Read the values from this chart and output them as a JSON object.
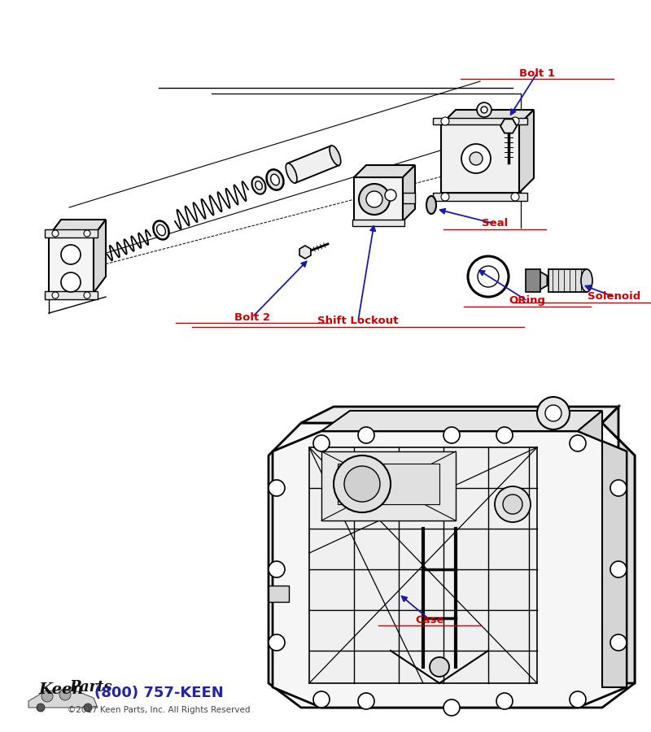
{
  "bg_color": "#ffffff",
  "label_color": "#cc0000",
  "arrow_color": "#1a1aaa",
  "line_color": "#000000",
  "part_fill": "#f0f0f0",
  "part_edge": "#111111",
  "phone": "(800) 757-KEEN",
  "copyright": "©2017 Keen Parts, Inc. All Rights Reserved",
  "keen_parts_color": "#2222aa",
  "labels": {
    "Bolt 1": [
      0.68,
      0.095,
      0.63,
      0.145,
      "center"
    ],
    "Seal": [
      0.62,
      0.28,
      0.575,
      0.255,
      "center"
    ],
    "Bolt 2": [
      0.315,
      0.395,
      0.348,
      0.358,
      "center"
    ],
    "Shift Lockout": [
      0.445,
      0.4,
      0.455,
      0.355,
      "center"
    ],
    "ORing": [
      0.65,
      0.375,
      0.615,
      0.355,
      "center"
    ],
    "Solenoid": [
      0.76,
      0.365,
      0.72,
      0.34,
      "center"
    ],
    "Case": [
      0.55,
      0.755,
      0.54,
      0.7,
      "center"
    ]
  }
}
